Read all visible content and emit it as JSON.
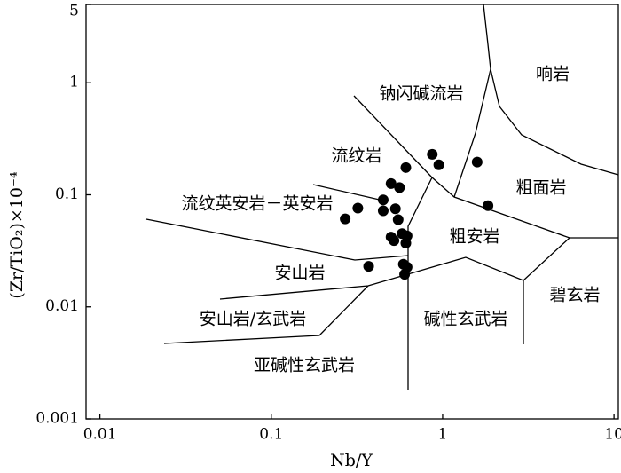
{
  "chart_data": {
    "type": "scatter",
    "x_label": "Nb/Y",
    "y_label": "(Zr/TiO₂)×10⁻⁴",
    "xscale": "log",
    "yscale": "log",
    "xlim": [
      0.0083,
      10.6
    ],
    "ylim": [
      0.001,
      5
    ],
    "xticks": [
      0.01,
      0.1,
      1,
      10
    ],
    "yticks": [
      0.001,
      0.01,
      0.1,
      1,
      5
    ],
    "annotations": [
      "响岩",
      "钠闪碱流岩",
      "流纹岩",
      "粗面岩",
      "流纹英安岩－英安岩",
      "粗安岩",
      "安山岩",
      "碧玄岩",
      "安山岩/玄武岩",
      "碱性玄武岩",
      "亚碱性玄武岩"
    ],
    "color": "#000000",
    "x": [
      0.27,
      0.32,
      0.37,
      0.45,
      0.45,
      0.5,
      0.56,
      0.53,
      0.55,
      0.5,
      0.52,
      0.58,
      0.62,
      0.61,
      0.61,
      0.87,
      0.95,
      0.59,
      0.62,
      0.6,
      1.59,
      1.84
    ],
    "y": [
      0.061,
      0.076,
      0.023,
      0.09,
      0.072,
      0.126,
      0.116,
      0.075,
      0.06,
      0.042,
      0.039,
      0.045,
      0.043,
      0.037,
      0.175,
      0.23,
      0.185,
      0.024,
      0.0226,
      0.0195,
      0.196,
      0.08
    ]
  }
}
